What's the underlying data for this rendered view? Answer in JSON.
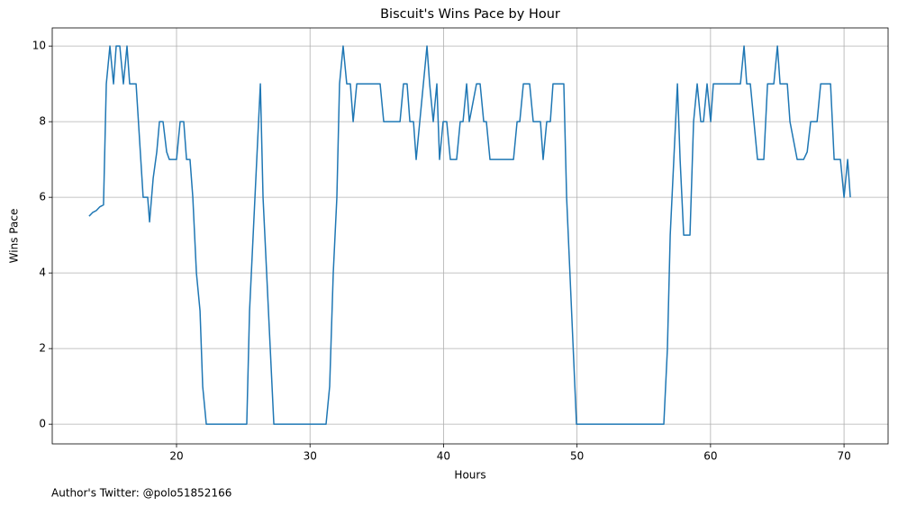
{
  "chart_data": {
    "type": "line",
    "title": "Biscuit's Wins Pace by Hour",
    "xlabel": "Hours",
    "ylabel": "Wins Pace",
    "footnote": "Author's Twitter: @polo51852166",
    "x": [
      13.45,
      13.72,
      13.99,
      14.26,
      14.53,
      14.74,
      15.01,
      15.28,
      15.48,
      15.75,
      16.02,
      16.29,
      16.49,
      16.97,
      17.5,
      17.84,
      17.98,
      18.25,
      18.52,
      18.72,
      18.99,
      19.26,
      19.46,
      20.0,
      20.27,
      20.54,
      20.75,
      21.01,
      21.22,
      21.49,
      21.76,
      21.96,
      22.23,
      25.26,
      25.47,
      26.28,
      26.48,
      27.29,
      31.2,
      31.47,
      31.74,
      32.01,
      32.21,
      32.48,
      32.75,
      33.02,
      33.23,
      33.5,
      35.25,
      35.52,
      36.74,
      37.0,
      37.27,
      37.48,
      37.75,
      37.95,
      38.22,
      38.76,
      38.96,
      39.23,
      39.5,
      39.7,
      39.97,
      40.24,
      40.51,
      40.98,
      41.25,
      41.46,
      41.73,
      41.93,
      42.47,
      42.74,
      43.01,
      43.21,
      43.48,
      45.24,
      45.51,
      45.71,
      45.98,
      46.45,
      46.72,
      47.26,
      47.46,
      47.73,
      48.0,
      48.2,
      49.01,
      49.22,
      49.96,
      56.5,
      56.77,
      56.98,
      57.52,
      57.72,
      57.99,
      58.46,
      58.73,
      59.0,
      59.27,
      59.47,
      59.74,
      60.01,
      60.21,
      62.24,
      62.51,
      62.71,
      62.98,
      63.25,
      63.52,
      63.99,
      64.27,
      64.74,
      65.01,
      65.21,
      65.75,
      65.95,
      66.49,
      66.97,
      67.24,
      67.5,
      67.98,
      68.25,
      68.99,
      69.26,
      69.73,
      70.0,
      70.27,
      70.47
    ],
    "series": [
      {
        "name": "Wins Pace",
        "color": "#1f77b4",
        "values": [
          5.5,
          5.6,
          5.65,
          5.75,
          5.8,
          9,
          10,
          9,
          10,
          10,
          9,
          10,
          9,
          9,
          6,
          6,
          5.35,
          6.5,
          7.2,
          8,
          8,
          7.2,
          7,
          7,
          8,
          8,
          7,
          7,
          6,
          4,
          3,
          1,
          0,
          0,
          3,
          9,
          6,
          0,
          0,
          1,
          4,
          6,
          9,
          10,
          9,
          9,
          8,
          9,
          9,
          8,
          8,
          9,
          9,
          8,
          8,
          7,
          8,
          10,
          9,
          8,
          9,
          7,
          8,
          8,
          7,
          7,
          8,
          8,
          9,
          8,
          9,
          9,
          8,
          8,
          7,
          7,
          8,
          8,
          9,
          9,
          8,
          8,
          7,
          8,
          8,
          9,
          9,
          6,
          0,
          0,
          2,
          5,
          9,
          7,
          5,
          5,
          8,
          9,
          8,
          8,
          9,
          8,
          9,
          9,
          10,
          9,
          9,
          8,
          7,
          7,
          9,
          9,
          10,
          9,
          9,
          8,
          7,
          7,
          7.2,
          8,
          8,
          9,
          9,
          7,
          7,
          6,
          7,
          6
        ]
      }
    ],
    "xlim": [
      10.69,
      73.3
    ],
    "ylim": [
      -0.52,
      10.48
    ],
    "xticks": [
      20,
      30,
      40,
      50,
      60,
      70
    ],
    "yticks": [
      0,
      2,
      4,
      6,
      8,
      10
    ],
    "grid": true
  }
}
